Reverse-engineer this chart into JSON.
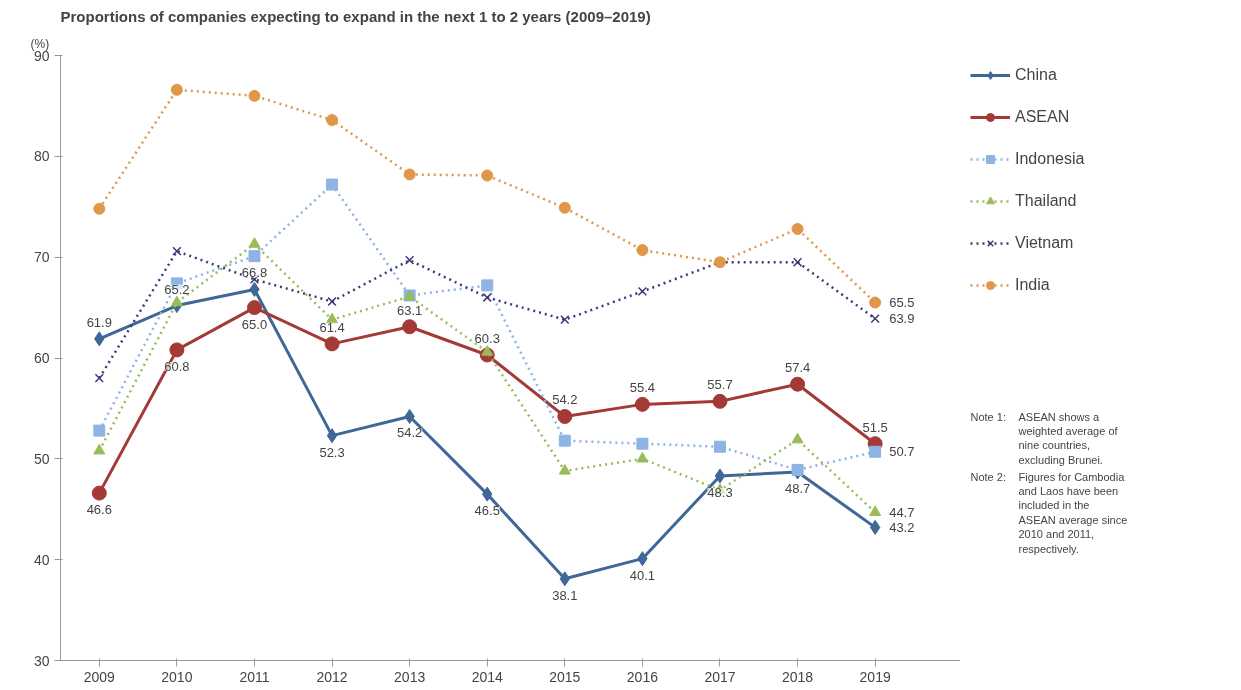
{
  "chart_data": {
    "type": "line",
    "title": "Proportions of companies expecting to expand in the next 1 to 2 years (2009–2019)",
    "ylabel": "(%)",
    "categories": [
      "2009",
      "2010",
      "2011",
      "2012",
      "2013",
      "2014",
      "2015",
      "2016",
      "2017",
      "2018",
      "2019"
    ],
    "ylim": [
      30,
      90
    ],
    "yticks": [
      30,
      40,
      50,
      60,
      70,
      80,
      90
    ],
    "grid": false,
    "legend": "right",
    "series": [
      {
        "name": "China",
        "color": "#3f6797",
        "marker": "diamond",
        "line_style": "solid",
        "values": [
          61.9,
          65.2,
          66.8,
          52.3,
          54.2,
          46.5,
          38.1,
          40.1,
          48.3,
          48.7,
          43.2
        ],
        "value_labels": [
          "61.9",
          "65.2",
          "66.8",
          "52.3",
          "54.2",
          "46.5",
          "38.1",
          "40.1",
          "48.3",
          "48.7",
          "43.2"
        ]
      },
      {
        "name": "ASEAN",
        "color": "#a33a36",
        "marker": "circle",
        "line_style": "solid",
        "values": [
          46.6,
          60.8,
          65.0,
          61.4,
          63.1,
          60.3,
          54.2,
          55.4,
          55.7,
          57.4,
          51.5
        ],
        "value_labels": [
          "46.6",
          "60.8",
          "65.0",
          "61.4",
          "63.1",
          "60.3",
          "54.2",
          "55.4",
          "55.7",
          "57.4",
          "51.5"
        ]
      },
      {
        "name": "Indonesia",
        "color": "#8db4e2",
        "marker": "square",
        "line_style": "dotted",
        "values": [
          52.8,
          67.4,
          70.1,
          77.2,
          66.2,
          67.2,
          51.8,
          51.5,
          51.2,
          48.9,
          50.7
        ],
        "value_labels": [
          null,
          null,
          null,
          null,
          null,
          null,
          null,
          null,
          null,
          null,
          "50.7"
        ]
      },
      {
        "name": "Thailand",
        "color": "#9bbb59",
        "marker": "triangle",
        "line_style": "dotted",
        "values": [
          50.8,
          65.5,
          71.3,
          63.8,
          66.1,
          60.6,
          48.8,
          50.0,
          46.9,
          51.9,
          44.7
        ],
        "value_labels": [
          null,
          null,
          null,
          null,
          null,
          null,
          null,
          null,
          null,
          null,
          "44.7"
        ]
      },
      {
        "name": "Vietnam",
        "color": "#403979",
        "marker": "cross",
        "line_style": "dotted",
        "values": [
          58.0,
          70.6,
          67.8,
          65.6,
          69.7,
          66.0,
          63.8,
          66.6,
          69.5,
          69.5,
          63.9
        ],
        "value_labels": [
          null,
          null,
          null,
          null,
          null,
          null,
          null,
          null,
          null,
          null,
          "63.9"
        ]
      },
      {
        "name": "India",
        "color": "#e0974a",
        "marker": "circle",
        "line_style": "dotted",
        "values": [
          74.8,
          86.6,
          86.0,
          83.6,
          78.2,
          78.1,
          74.9,
          70.7,
          69.5,
          72.8,
          65.5
        ],
        "value_labels": [
          null,
          null,
          null,
          null,
          null,
          null,
          null,
          null,
          null,
          null,
          "65.5"
        ]
      }
    ],
    "annotations": [
      "Note 1:  ASEAN shows a weighted average of nine countries, excluding Brunei.",
      "Note 2:  Figures for Cambodia and Laos have been included in the ASEAN average since 2010 and 2011, respectively."
    ]
  }
}
